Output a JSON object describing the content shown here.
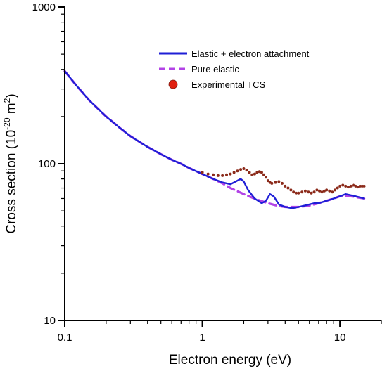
{
  "chart_data": {
    "type": "line",
    "title": "",
    "xlabel": "Electron energy (eV)",
    "ylabel_main": "Cross section (10",
    "ylabel_exp": "-20",
    "ylabel_tail": " m",
    "ylabel_sup2": "2",
    "ylabel_close": ")",
    "xscale": "log",
    "yscale": "log",
    "xlim": [
      0.1,
      20
    ],
    "ylim": [
      10,
      1000
    ],
    "x_ticks": [
      {
        "value": 0.1,
        "label": "0.1"
      },
      {
        "value": 1,
        "label": "1"
      },
      {
        "value": 10,
        "label": "10"
      }
    ],
    "y_ticks": [
      {
        "value": 10,
        "label": "10"
      },
      {
        "value": 100,
        "label": "100"
      },
      {
        "value": 1000,
        "label": "1000"
      }
    ],
    "legend_position": "top-right",
    "series": [
      {
        "name": "Elastic + electron attachment",
        "style": "solid",
        "color": "#1f1fd6",
        "x": [
          0.1,
          0.12,
          0.15,
          0.2,
          0.25,
          0.3,
          0.4,
          0.5,
          0.6,
          0.7,
          0.8,
          1.0,
          1.2,
          1.4,
          1.6,
          1.75,
          1.9,
          2.0,
          2.15,
          2.4,
          2.7,
          2.9,
          3.1,
          3.3,
          3.6,
          4.0,
          4.5,
          5.0,
          5.5,
          6.0,
          6.5,
          7.0,
          7.5,
          8.0,
          8.5,
          9.0,
          9.5,
          10.0,
          11.0,
          12.0,
          13.0,
          14.0,
          15.0
        ],
        "y": [
          390,
          320,
          255,
          200,
          170,
          150,
          128,
          115,
          106,
          100,
          94,
          86,
          80,
          76,
          74,
          77,
          80,
          77,
          68,
          60,
          56,
          58,
          64,
          62,
          55,
          53,
          52,
          53,
          54,
          55,
          56,
          56,
          57,
          58,
          59,
          60,
          61,
          62,
          64,
          63,
          62,
          61,
          60
        ]
      },
      {
        "name": "Pure elastic",
        "style": "dashed",
        "color": "#b243e6",
        "x": [
          0.1,
          0.12,
          0.15,
          0.2,
          0.25,
          0.3,
          0.4,
          0.5,
          0.6,
          0.7,
          0.8,
          1.0,
          1.2,
          1.4,
          1.6,
          2.0,
          2.5,
          3.0,
          3.5,
          4.0,
          5.0,
          6.0,
          7.0,
          8.0,
          9.0,
          10.0,
          12.0,
          15.0
        ],
        "y": [
          390,
          320,
          255,
          200,
          170,
          150,
          128,
          115,
          106,
          100,
          94,
          86,
          80,
          75,
          70,
          64,
          59,
          56,
          54,
          53,
          53,
          54,
          56,
          58,
          60,
          62,
          62,
          60
        ]
      },
      {
        "name": "Experimental TCS",
        "style": "dots",
        "color": "#8b2a1a",
        "x": [
          1.0,
          1.1,
          1.2,
          1.3,
          1.4,
          1.5,
          1.6,
          1.7,
          1.8,
          1.9,
          2.0,
          2.1,
          2.2,
          2.3,
          2.4,
          2.5,
          2.6,
          2.7,
          2.8,
          2.9,
          3.0,
          3.1,
          3.2,
          3.4,
          3.6,
          3.8,
          4.0,
          4.2,
          4.4,
          4.6,
          4.8,
          5.0,
          5.3,
          5.6,
          5.9,
          6.2,
          6.5,
          6.8,
          7.1,
          7.4,
          7.7,
          8.0,
          8.4,
          8.8,
          9.2,
          9.6,
          10.0,
          10.5,
          11.0,
          11.5,
          12.0,
          12.5,
          13.0,
          13.5,
          14.0,
          14.5,
          15.0
        ],
        "y": [
          88,
          86,
          85,
          84,
          84,
          85,
          86,
          88,
          90,
          92,
          93,
          91,
          88,
          85,
          86,
          88,
          89,
          88,
          85,
          82,
          78,
          76,
          75,
          76,
          77,
          75,
          72,
          70,
          68,
          66,
          65,
          65,
          66,
          67,
          66,
          65,
          66,
          68,
          67,
          66,
          67,
          68,
          67,
          66,
          68,
          70,
          72,
          73,
          72,
          71,
          72,
          73,
          72,
          71,
          72,
          72,
          72
        ]
      }
    ]
  },
  "legend_marker_color": "#e02010"
}
